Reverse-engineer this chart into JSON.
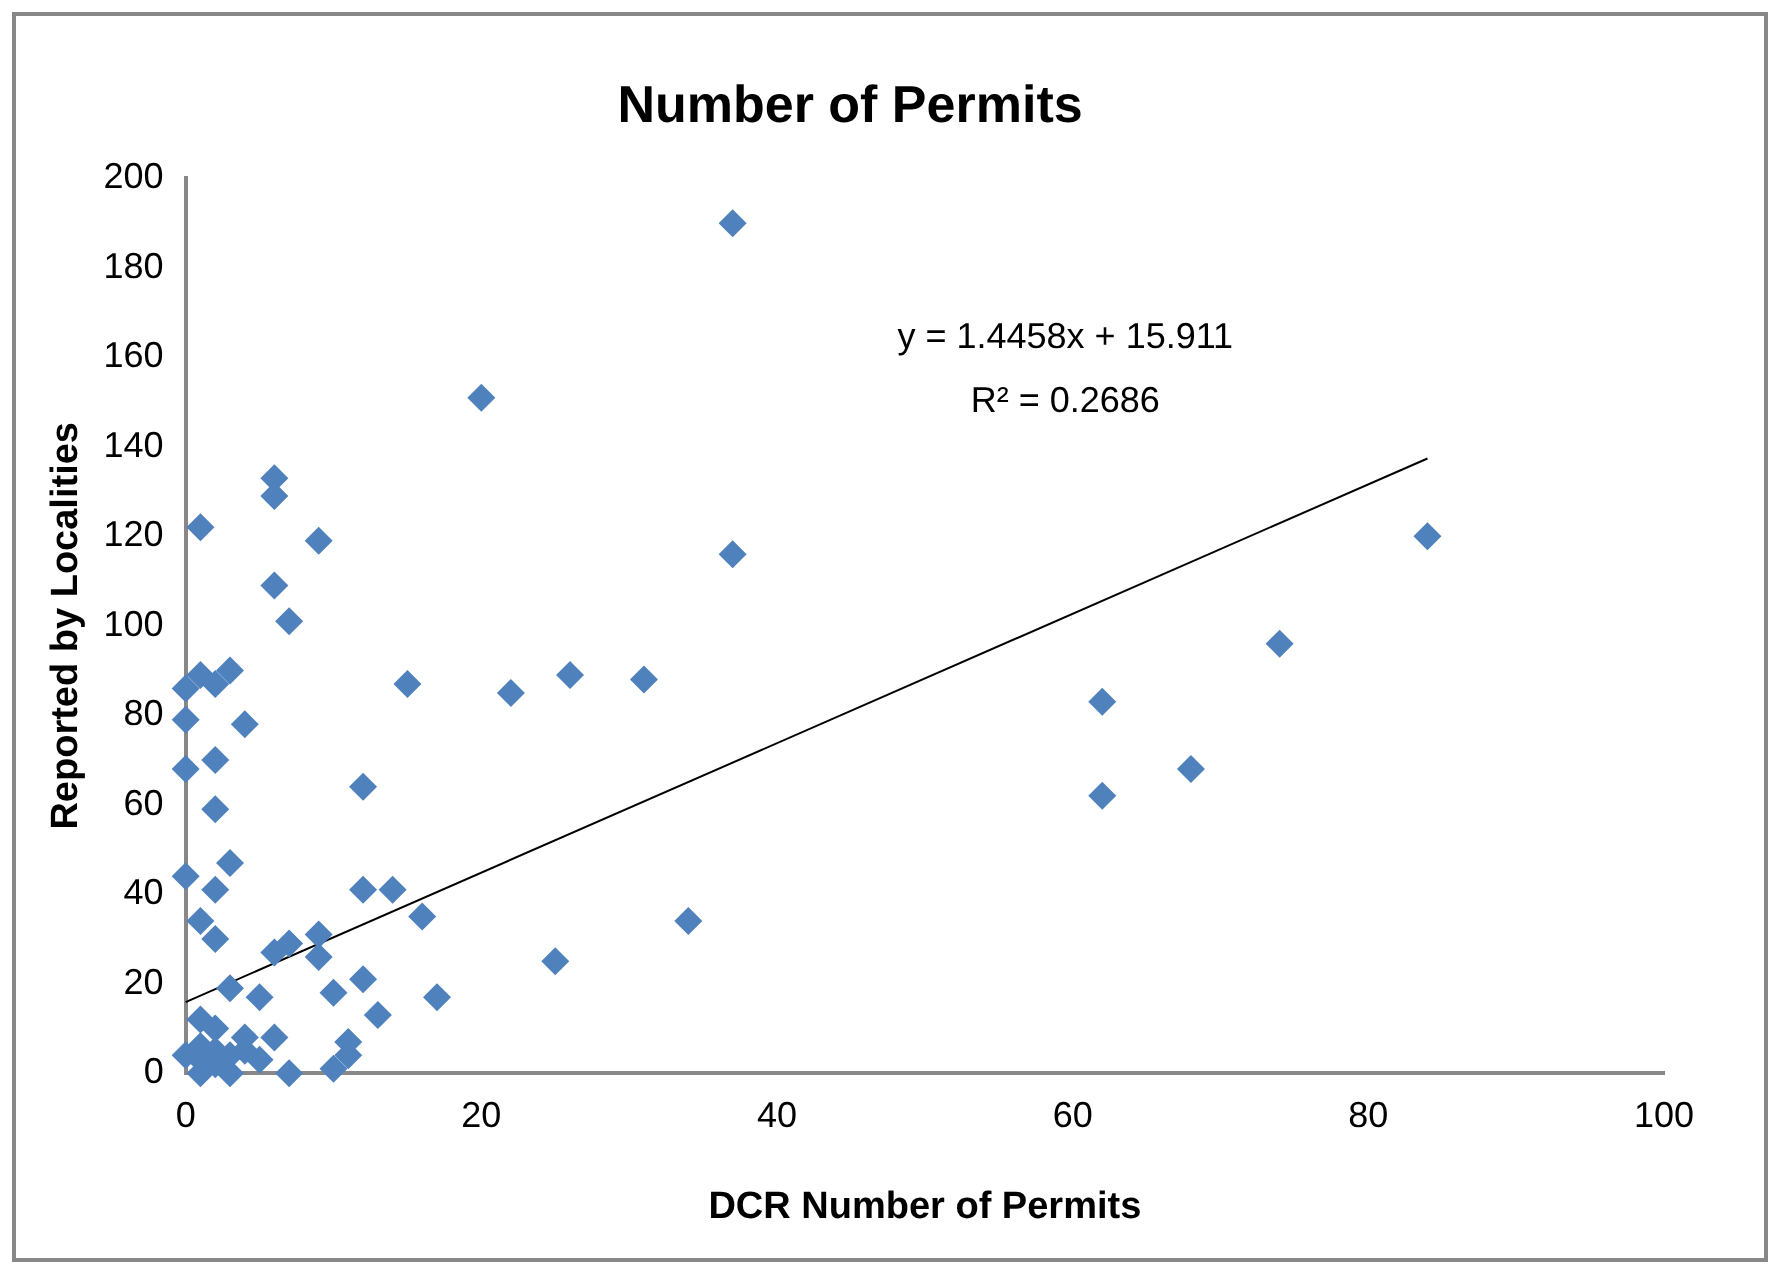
{
  "chart_data": {
    "type": "scatter",
    "title": "Number of Permits",
    "xlabel": "DCR Number of Permits",
    "ylabel": "Reported by Localities",
    "xlim": [
      0,
      100
    ],
    "xticks": [
      0,
      20,
      40,
      60,
      80,
      100
    ],
    "ylim": [
      0,
      200
    ],
    "yticks": [
      0,
      20,
      40,
      60,
      80,
      100,
      120,
      140,
      160,
      180,
      200
    ],
    "grid": false,
    "legend": false,
    "marker": "diamond",
    "annotations": [
      "y = 1.4458x + 15.911",
      "R² = 0.2686"
    ],
    "series": [
      {
        "color": "#4f81bd",
        "x": [
          37,
          20,
          6,
          6,
          1,
          9,
          37,
          84,
          6,
          7,
          74,
          3,
          1,
          0,
          2,
          26,
          31,
          15,
          22,
          62,
          0,
          4,
          2,
          0,
          68,
          12,
          62,
          2,
          3,
          0,
          2,
          12,
          14,
          1,
          16,
          34,
          2,
          7,
          6,
          9,
          9,
          25,
          12,
          10,
          17,
          3,
          5,
          13,
          1,
          2,
          4,
          6,
          11,
          1,
          0,
          3,
          5,
          11,
          10,
          7,
          1,
          2,
          3,
          4,
          2,
          1
        ],
        "values": [
          190,
          151,
          133,
          129,
          122,
          119,
          116,
          120,
          109,
          101,
          96,
          90,
          89,
          86,
          87,
          89,
          88,
          87,
          85,
          83,
          79,
          78,
          70,
          68,
          68,
          64,
          62,
          59,
          47,
          44,
          41,
          41,
          41,
          34,
          35,
          34,
          30,
          29,
          27,
          31,
          26,
          25,
          21,
          18,
          17,
          19,
          17,
          13,
          12,
          10,
          8,
          8,
          7,
          6,
          4,
          4,
          3,
          4,
          1,
          0,
          0,
          2,
          0,
          5,
          5,
          3
        ]
      },
      {
        "type": "line",
        "color": "#000000",
        "marker": "none",
        "line_style": "solid",
        "x": [
          0,
          84
        ],
        "values": [
          15.9,
          137.4
        ]
      }
    ]
  }
}
